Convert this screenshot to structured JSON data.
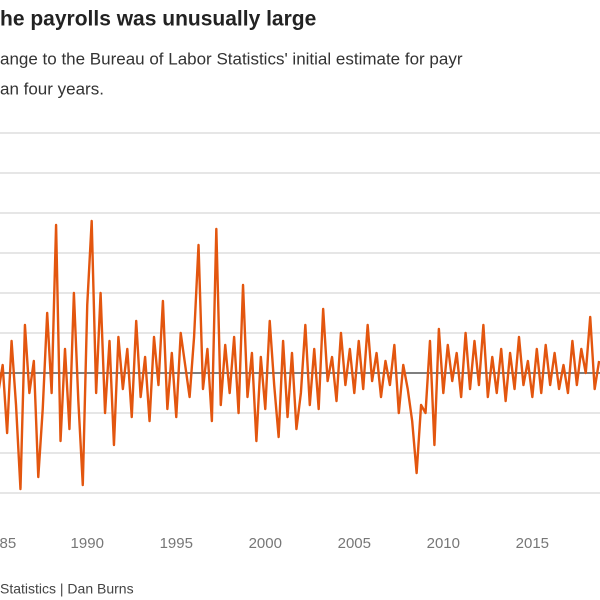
{
  "chart_data": {
    "type": "line",
    "title": "he payrolls was unusually large",
    "subtitle": [
      "ange to the Bureau of Labor Statistics' initial estimate for payr",
      "an four years."
    ],
    "source": "Statistics | Dan Burns",
    "xlim": [
      1985.1,
      2018.8
    ],
    "xticks": [
      {
        "value": 1985,
        "label": "85"
      },
      1990,
      1995,
      2000,
      2005,
      2010,
      2015
    ],
    "ylim": [
      -3,
      6
    ],
    "yticks": [
      -3,
      -2,
      -1,
      0,
      1,
      2,
      3,
      4,
      5,
      6
    ],
    "grid": true,
    "series": [
      {
        "color": "#e3560f",
        "x": [
          1985,
          1985.25,
          1985.5,
          1985.75,
          1986,
          1986.25,
          1986.5,
          1986.75,
          1987,
          1987.25,
          1987.5,
          1987.75,
          1988,
          1988.25,
          1988.5,
          1988.75,
          1989,
          1989.25,
          1989.5,
          1989.75,
          1990,
          1990.25,
          1990.5,
          1990.75,
          1991,
          1991.25,
          1991.5,
          1991.75,
          1992,
          1992.25,
          1992.5,
          1992.75,
          1993,
          1993.25,
          1993.5,
          1993.75,
          1994,
          1994.25,
          1994.5,
          1994.75,
          1995,
          1995.25,
          1995.5,
          1995.75,
          1996,
          1996.25,
          1996.5,
          1996.75,
          1997,
          1997.25,
          1997.5,
          1997.75,
          1998,
          1998.25,
          1998.5,
          1998.75,
          1999,
          1999.25,
          1999.5,
          1999.75,
          2000,
          2000.25,
          2000.5,
          2000.75,
          2001,
          2001.25,
          2001.5,
          2001.75,
          2002,
          2002.25,
          2002.5,
          2002.75,
          2003,
          2003.25,
          2003.5,
          2003.75,
          2004,
          2004.25,
          2004.5,
          2004.75,
          2005,
          2005.25,
          2005.5,
          2005.75,
          2006,
          2006.25,
          2006.5,
          2006.75,
          2007,
          2007.25,
          2007.5,
          2007.75,
          2008,
          2008.25,
          2008.5,
          2008.75,
          2009,
          2009.25,
          2009.5,
          2009.75,
          2010,
          2010.25,
          2010.5,
          2010.75,
          2011,
          2011.25,
          2011.5,
          2011.75,
          2012,
          2012.25,
          2012.5,
          2012.75,
          2013,
          2013.25,
          2013.5,
          2013.75,
          2014,
          2014.25,
          2014.5,
          2014.75,
          2015,
          2015.25,
          2015.5,
          2015.75,
          2016,
          2016.25,
          2016.5,
          2016.75,
          2017,
          2017.25,
          2017.5,
          2017.75,
          2018,
          2018.25,
          2018.5,
          2018.75
        ],
        "values": [
          -0.5,
          0.2,
          -1.5,
          0.8,
          -0.8,
          -2.9,
          1.2,
          -0.5,
          0.3,
          -2.6,
          -0.9,
          1.5,
          -0.5,
          3.7,
          -1.7,
          0.6,
          -1.4,
          2.0,
          -0.7,
          -2.8,
          1.7,
          3.8,
          -0.5,
          2.0,
          -1.0,
          0.8,
          -1.8,
          0.9,
          -0.4,
          0.6,
          -1.1,
          1.3,
          -0.6,
          0.4,
          -1.2,
          0.9,
          -0.3,
          1.8,
          -0.9,
          0.5,
          -1.1,
          1.0,
          0.2,
          -0.6,
          0.9,
          3.2,
          -0.4,
          0.6,
          -1.2,
          3.6,
          -0.8,
          0.7,
          -0.5,
          0.9,
          -1.0,
          2.2,
          -0.6,
          0.5,
          -1.7,
          0.4,
          -0.9,
          1.3,
          -0.3,
          -1.6,
          0.8,
          -1.1,
          0.5,
          -1.4,
          -0.5,
          1.2,
          -0.8,
          0.6,
          -0.9,
          1.6,
          -0.2,
          0.4,
          -0.7,
          1.0,
          -0.3,
          0.6,
          -0.5,
          0.8,
          -0.4,
          1.2,
          -0.2,
          0.5,
          -0.6,
          0.3,
          -0.3,
          0.7,
          -1.0,
          0.2,
          -0.4,
          -1.2,
          -2.5,
          -0.8,
          -1.0,
          0.8,
          -1.8,
          1.1,
          -0.5,
          0.7,
          -0.2,
          0.5,
          -0.6,
          1.0,
          -0.4,
          0.8,
          -0.3,
          1.2,
          -0.6,
          0.4,
          -0.5,
          0.6,
          -0.7,
          0.5,
          -0.4,
          0.9,
          -0.3,
          0.3,
          -0.6,
          0.6,
          -0.5,
          0.7,
          -0.3,
          0.5,
          -0.4,
          0.2,
          -0.5,
          0.8,
          -0.3,
          0.6,
          0.0,
          1.4,
          -0.4,
          0.3
        ]
      }
    ]
  }
}
